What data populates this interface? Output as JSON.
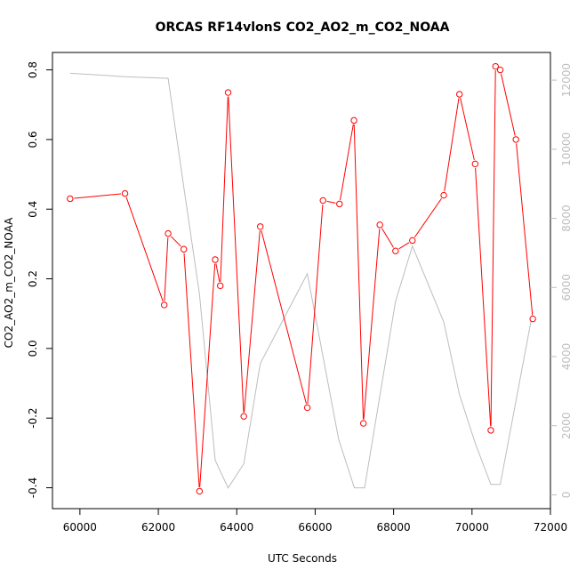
{
  "chart_data": {
    "type": "line",
    "title": "ORCAS RF14vlonS CO2_AO2_m_CO2_NOAA",
    "xlabel": "UTC Seconds",
    "ylabel": "CO2_AO2_m_CO2_NOAA",
    "y2label": "",
    "xlim": [
      59300,
      72000
    ],
    "ylim": [
      -0.46,
      0.85
    ],
    "y2lim": [
      -400,
      12800
    ],
    "xticks": [
      60000,
      62000,
      64000,
      66000,
      68000,
      70000,
      72000
    ],
    "yticks": [
      -0.4,
      -0.2,
      0.0,
      0.2,
      0.4,
      0.6,
      0.8
    ],
    "ytick_labels": [
      "-0.4",
      "-0.2",
      "0.0",
      "0.2",
      "0.4",
      "0.6",
      "0.8"
    ],
    "y2ticks": [
      0,
      2000,
      4000,
      6000,
      8000,
      10000,
      12000
    ],
    "grid": false,
    "colors": {
      "primary": "#ff0000",
      "secondary": "#bdbdbd",
      "axis": "#000000"
    },
    "series": [
      {
        "axis": "left",
        "style": "line+points",
        "x": [
          59750,
          61150,
          62150,
          62250,
          62650,
          63050,
          63450,
          63580,
          63780,
          64180,
          64600,
          65800,
          66200,
          66620,
          66990,
          67230,
          67650,
          68050,
          68480,
          69280,
          69680,
          70080,
          70480,
          70600,
          70720,
          71120,
          71550
        ],
        "values": [
          0.43,
          0.445,
          0.125,
          0.33,
          0.285,
          -0.41,
          0.255,
          0.18,
          0.735,
          -0.195,
          0.35,
          -0.17,
          0.425,
          0.415,
          0.655,
          -0.215,
          0.355,
          0.28,
          0.31,
          0.44,
          0.73,
          0.53,
          -0.235,
          0.81,
          0.8,
          0.6,
          0.085
        ]
      },
      {
        "axis": "right",
        "style": "line",
        "x": [
          59750,
          61150,
          62250,
          62650,
          63050,
          63450,
          63780,
          64180,
          64600,
          65800,
          66600,
          67000,
          67260,
          68050,
          68480,
          69280,
          69680,
          70080,
          70480,
          70720,
          71550
        ],
        "values": [
          12200,
          12100,
          12050,
          8900,
          5800,
          1000,
          200,
          900,
          3800,
          6400,
          1600,
          200,
          200,
          5600,
          7200,
          5000,
          2900,
          1500,
          300,
          300,
          5300
        ]
      }
    ]
  }
}
